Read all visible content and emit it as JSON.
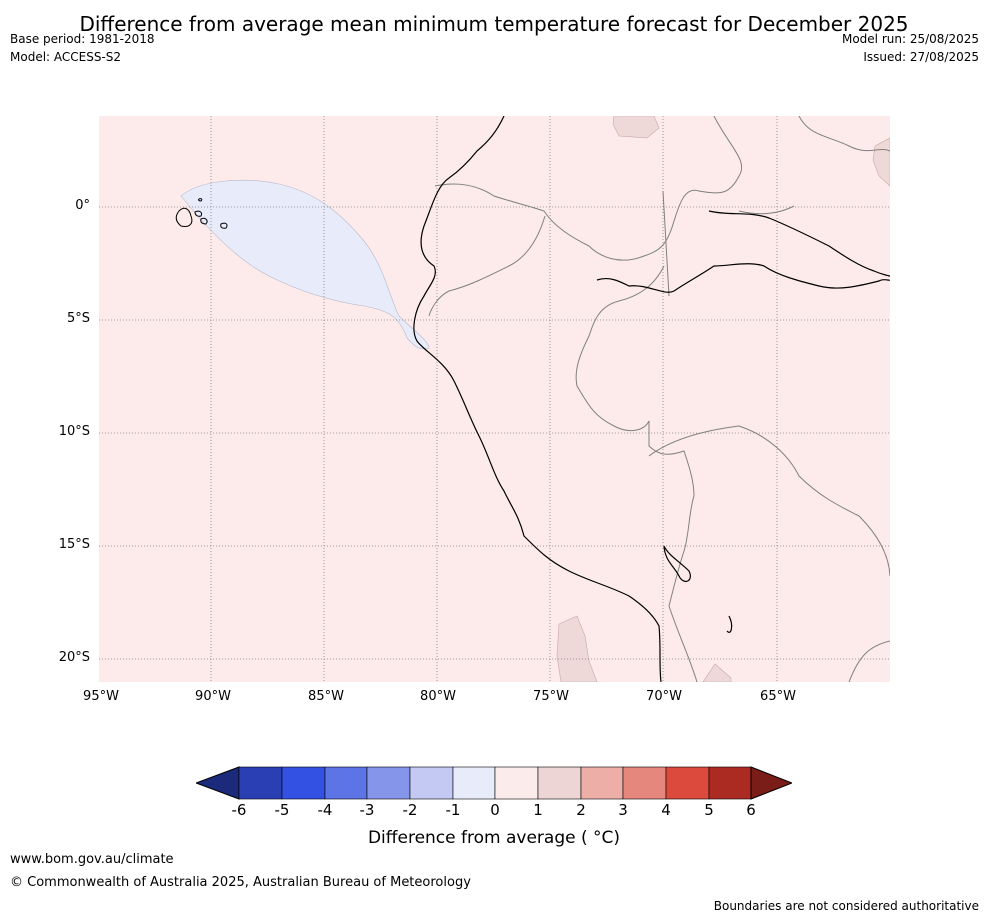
{
  "title": "Difference from average mean minimum temperature forecast for December 2025",
  "meta_left": {
    "base_period": "Base period: 1981-2018",
    "model": "Model: ACCESS-S2"
  },
  "meta_right": {
    "model_run": "Model run: 25/08/2025",
    "issued": "Issued: 27/08/2025"
  },
  "map": {
    "lat_labels": [
      "0°",
      "5°S",
      "10°S",
      "15°S",
      "20°S"
    ],
    "lon_labels": [
      "95°W",
      "90°W",
      "85°W",
      "80°W",
      "75°W",
      "70°W",
      "65°W"
    ],
    "colors": {
      "ocean_fill": "#fcebea",
      "cool_anomaly": "#e8ecfa",
      "warm_patch": "#efd8d8",
      "coast": "#000000",
      "border": "#808080",
      "grid": "#808080"
    }
  },
  "colorbar": {
    "ticks": [
      "-6",
      "-5",
      "-4",
      "-3",
      "-2",
      "-1",
      "0",
      "1",
      "2",
      "3",
      "4",
      "5",
      "6"
    ],
    "colors": [
      "#1b2a7a",
      "#2a3fb3",
      "#3352e3",
      "#5c74e6",
      "#8595ea",
      "#c3c9f3",
      "#e8ebfa",
      "#fcebeb",
      "#eed5d5",
      "#eeaea8",
      "#e6877d",
      "#dc4a3d",
      "#ab2a22",
      "#7a1c17"
    ],
    "label": "Difference from average ( °C)"
  },
  "footer": {
    "url": "www.bom.gov.au/climate",
    "copyright": "© Commonwealth of Australia 2025, Australian Bureau of Meteorology",
    "disclaimer": "Boundaries are not considered authoritative"
  }
}
